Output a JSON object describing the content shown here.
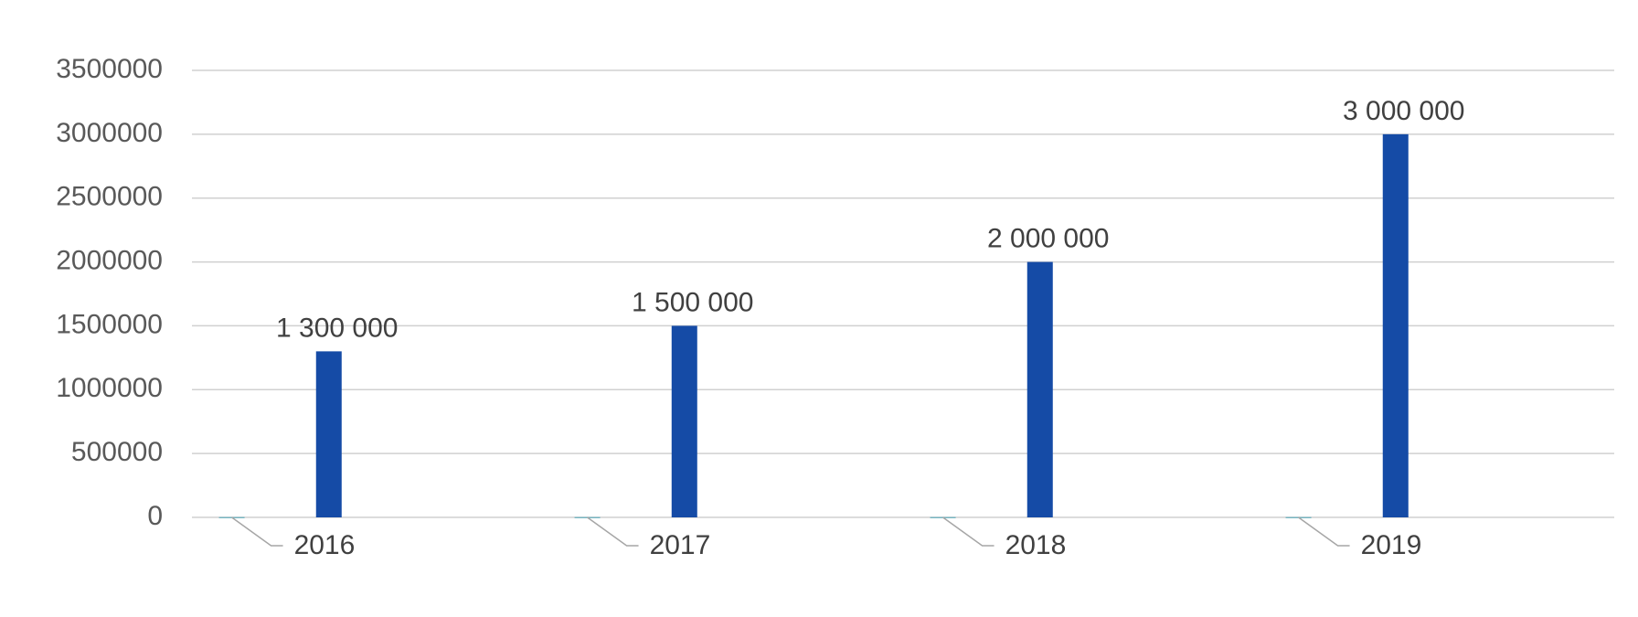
{
  "chart_data": {
    "type": "bar",
    "categories": [
      null,
      null,
      null,
      null
    ],
    "series": [
      {
        "color": "#4aa3b5",
        "values": [
          2016,
          2017,
          2018,
          2019
        ]
      },
      {
        "color": "#154ba6",
        "values": [
          1300000,
          1500000,
          2000000,
          3000000
        ],
        "value_labels": [
          "1 300 000",
          "1 500 000",
          "2 000 000",
          "3 000 000"
        ]
      }
    ],
    "ylim": [
      0,
      3500000
    ],
    "yticks": [
      0,
      500000,
      1000000,
      1500000,
      2000000,
      2500000,
      3000000,
      3500000
    ],
    "grid": true
  }
}
